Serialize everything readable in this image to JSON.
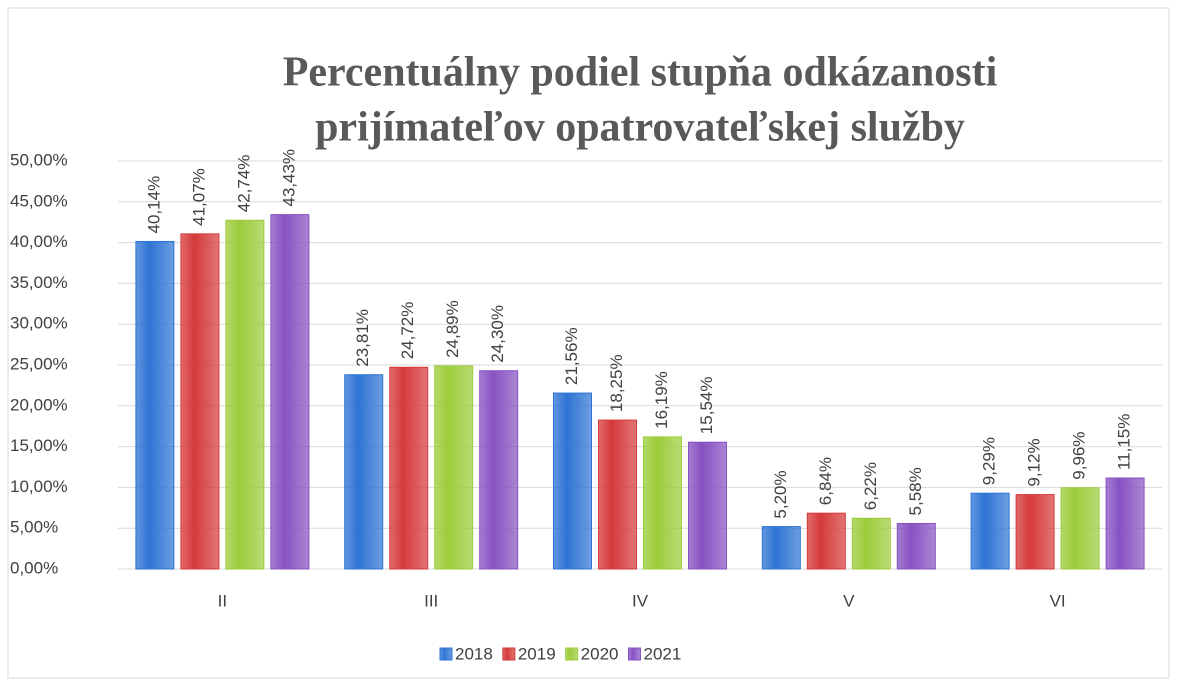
{
  "chart_data": {
    "type": "bar",
    "title": [
      "Percentuálny podiel stupňa odkázanosti",
      "prijímateľov opatrovateľskej služby"
    ],
    "categories": [
      "II",
      "III",
      "IV",
      "V",
      "VI"
    ],
    "series": [
      {
        "name": "2018",
        "color": "#2e74d4",
        "values": [
          40.14,
          23.81,
          21.56,
          5.2,
          9.29
        ],
        "value_labels": [
          "40,14%",
          "23,81%",
          "21,56%",
          "5,20%",
          "9,29%"
        ]
      },
      {
        "name": "2019",
        "color": "#d63a3a",
        "values": [
          41.07,
          24.72,
          18.25,
          6.84,
          9.12
        ],
        "value_labels": [
          "41,07%",
          "24,72%",
          "18,25%",
          "6,84%",
          "9,12%"
        ]
      },
      {
        "name": "2020",
        "color": "#9ccc3a",
        "values": [
          42.74,
          24.89,
          16.19,
          6.22,
          9.96
        ],
        "value_labels": [
          "42,74%",
          "24,89%",
          "16,19%",
          "6,22%",
          "9,96%"
        ]
      },
      {
        "name": "2021",
        "color": "#8752c2",
        "values": [
          43.43,
          24.3,
          15.54,
          5.58,
          11.15
        ],
        "value_labels": [
          "43,43%",
          "24,30%",
          "15,54%",
          "5,58%",
          "11,15%"
        ]
      }
    ],
    "ylim": [
      0,
      50
    ],
    "yticks": [
      {
        "value": 0,
        "label": "0,00%"
      },
      {
        "value": 5,
        "label": "5,00%"
      },
      {
        "value": 10,
        "label": "10,00%"
      },
      {
        "value": 15,
        "label": "15,00%"
      },
      {
        "value": 20,
        "label": "20,00%"
      },
      {
        "value": 25,
        "label": "25,00%"
      },
      {
        "value": 30,
        "label": "30,00%"
      },
      {
        "value": 35,
        "label": "35,00%"
      },
      {
        "value": 40,
        "label": "40,00%"
      },
      {
        "value": 45,
        "label": "45,00%"
      },
      {
        "value": 50,
        "label": "50,00%"
      }
    ],
    "grid": true,
    "legend": "bottom"
  }
}
